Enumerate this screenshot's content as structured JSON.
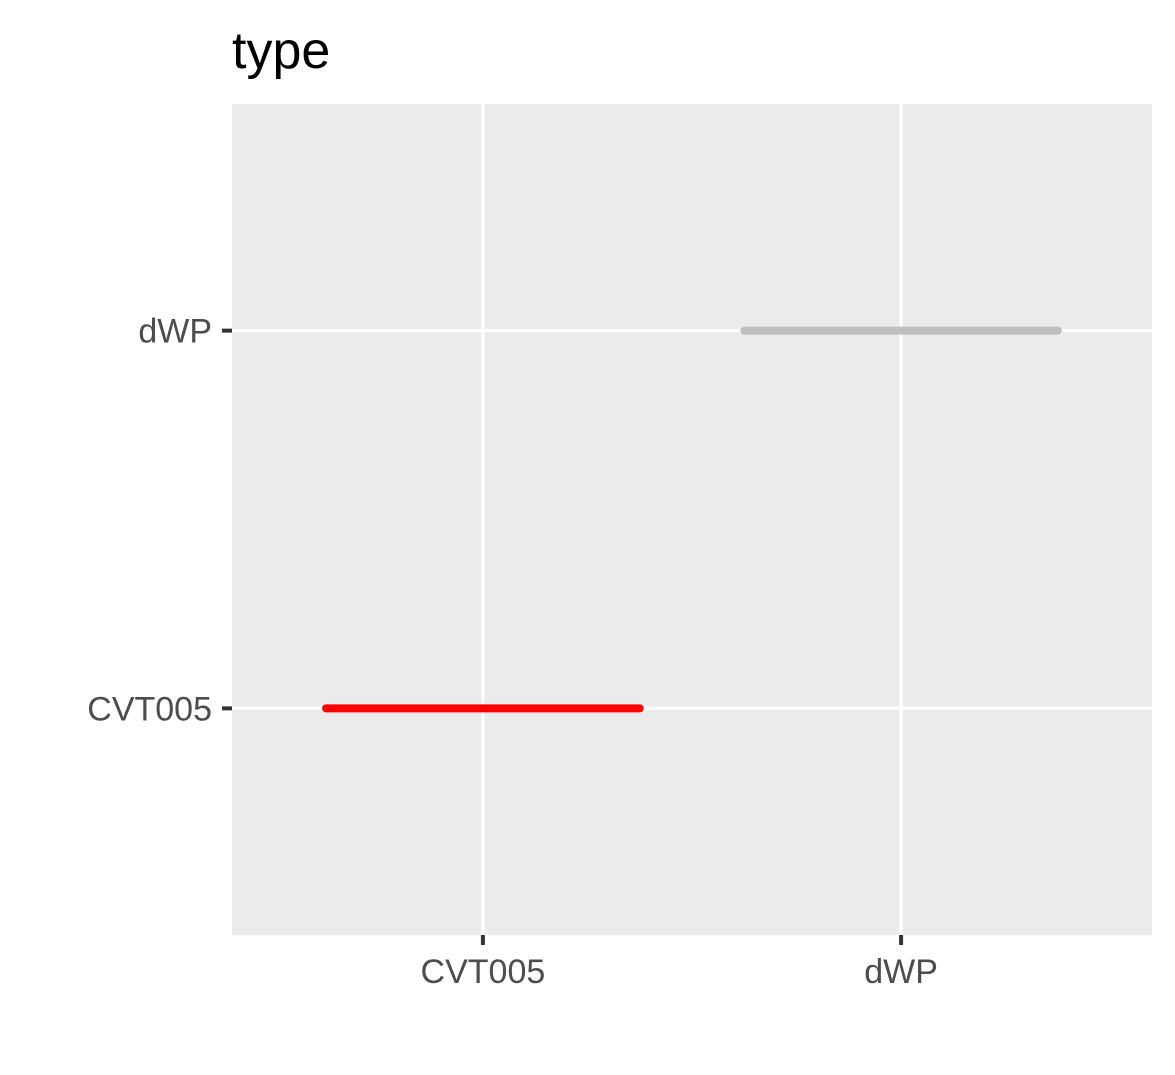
{
  "chart_data": {
    "type": "segment",
    "title": "type",
    "xlabel": "",
    "ylabel": "",
    "x_categories": [
      "CVT005",
      "dWP"
    ],
    "y_categories": [
      "CVT005",
      "dWP"
    ],
    "x_range": [
      0.4,
      2.6
    ],
    "y_range": [
      0.4,
      2.6
    ],
    "grid": true,
    "segments": [
      {
        "y": "CVT005",
        "x_start": 0.625,
        "x_end": 1.375,
        "color": "#ff0000"
      },
      {
        "y": "dWP",
        "x_start": 1.625,
        "x_end": 2.375,
        "color": "#bebebe"
      }
    ],
    "colors": {
      "panel_background": "#ebebeb",
      "grid_line": "#ffffff",
      "tick_mark": "#333333",
      "tick_text": "#4d4d4d",
      "title_text": "#000000"
    }
  }
}
